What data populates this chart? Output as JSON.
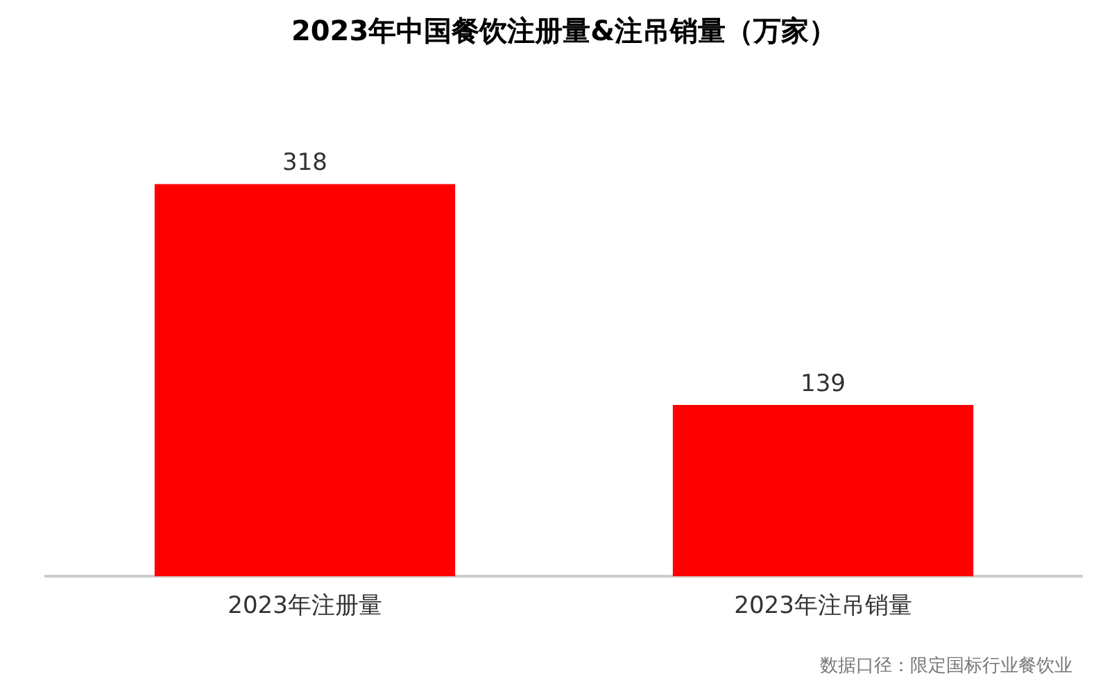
{
  "chart_data": {
    "type": "bar",
    "title": "2023年中国餐饮注册量&注吊销量（万家）",
    "categories": [
      "2023年注册量",
      "2023年注吊销量"
    ],
    "values": [
      318,
      139
    ],
    "color": "#ff0000",
    "data_labels": true,
    "grid": false,
    "legend": false,
    "annotations": [
      "数据口径：限定国标行业餐饮业"
    ]
  }
}
